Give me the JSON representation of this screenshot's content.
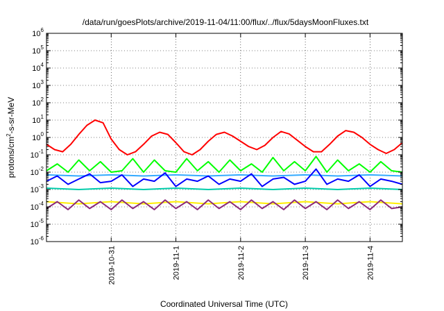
{
  "chart_data": {
    "type": "line",
    "title": "/data/run/goesPlots/archive/2019-11-04/11:00/flux/../flux/5daysMoonFluxes.txt",
    "xlabel": "Coordinated Universal Time (UTC)",
    "ylabel": "protons/cm²-s-sr-MeV",
    "ylabel_parts": {
      "pre": "protons/cm",
      "sup": "2",
      "post": "-s-sr-MeV"
    },
    "yscale": "log",
    "ylim": [
      1e-06,
      1000000.0
    ],
    "xlim": [
      "2019-10-30T00:00",
      "2019-11-04T12:00"
    ],
    "grid": true,
    "y_ticks": [
      {
        "base": "10",
        "exp": "-6"
      },
      {
        "base": "10",
        "exp": "-5"
      },
      {
        "base": "10",
        "exp": "-4"
      },
      {
        "base": "10",
        "exp": "-3"
      },
      {
        "base": "10",
        "exp": "-2"
      },
      {
        "base": "10",
        "exp": "-1"
      },
      {
        "base": "10",
        "exp": "0"
      },
      {
        "base": "10",
        "exp": "1"
      },
      {
        "base": "10",
        "exp": "2"
      },
      {
        "base": "10",
        "exp": "3"
      },
      {
        "base": "10",
        "exp": "4"
      },
      {
        "base": "10",
        "exp": "5"
      },
      {
        "base": "10",
        "exp": "6"
      }
    ],
    "x_ticks": [
      {
        "date": "2019-10-31T00:00",
        "label": "2019-10-31"
      },
      {
        "date": "2019-11-01T00:00",
        "label": "2019-11-1"
      },
      {
        "date": "2019-11-02T00:00",
        "label": "2019-11-2"
      },
      {
        "date": "2019-11-03T00:00",
        "label": "2019-11-3"
      },
      {
        "date": "2019-11-04T00:00",
        "label": "2019-11-4"
      }
    ],
    "series": [
      {
        "color": "#ff0000",
        "x": [
          "2019-10-30T00:00",
          "2019-10-30T03:00",
          "2019-10-30T06:00",
          "2019-10-30T09:00",
          "2019-10-30T12:00",
          "2019-10-30T15:00",
          "2019-10-30T18:00",
          "2019-10-30T21:00",
          "2019-10-31T00:00",
          "2019-10-31T03:00",
          "2019-10-31T06:00",
          "2019-10-31T09:00",
          "2019-10-31T12:00",
          "2019-10-31T15:00",
          "2019-10-31T18:00",
          "2019-10-31T21:00",
          "2019-11-01T00:00",
          "2019-11-01T03:00",
          "2019-11-01T06:00",
          "2019-11-01T09:00",
          "2019-11-01T12:00",
          "2019-11-01T15:00",
          "2019-11-01T18:00",
          "2019-11-01T21:00",
          "2019-11-02T00:00",
          "2019-11-02T03:00",
          "2019-11-02T06:00",
          "2019-11-02T09:00",
          "2019-11-02T12:00",
          "2019-11-02T15:00",
          "2019-11-02T18:00",
          "2019-11-02T21:00",
          "2019-11-03T00:00",
          "2019-11-03T03:00",
          "2019-11-03T06:00",
          "2019-11-03T09:00",
          "2019-11-03T12:00",
          "2019-11-03T15:00",
          "2019-11-03T18:00",
          "2019-11-03T21:00",
          "2019-11-04T00:00",
          "2019-11-04T03:00",
          "2019-11-04T06:00",
          "2019-11-04T09:00",
          "2019-11-04T12:00"
        ],
        "values": [
          0.4,
          0.2,
          0.15,
          0.4,
          1.5,
          5,
          10,
          7,
          0.8,
          0.2,
          0.1,
          0.15,
          0.4,
          1.2,
          2,
          1.5,
          0.5,
          0.15,
          0.1,
          0.2,
          0.6,
          1.5,
          2,
          1.2,
          0.6,
          0.3,
          0.2,
          0.35,
          1,
          2.2,
          1.6,
          0.7,
          0.3,
          0.15,
          0.15,
          0.4,
          1.2,
          2.5,
          2,
          1,
          0.4,
          0.2,
          0.12,
          0.2,
          0.5
        ]
      },
      {
        "color": "#00ff00",
        "x": [
          "2019-10-30T00:00",
          "2019-10-30T04:00",
          "2019-10-30T08:00",
          "2019-10-30T12:00",
          "2019-10-30T16:00",
          "2019-10-30T20:00",
          "2019-10-31T00:00",
          "2019-10-31T04:00",
          "2019-10-31T08:00",
          "2019-10-31T12:00",
          "2019-10-31T16:00",
          "2019-10-31T20:00",
          "2019-11-01T00:00",
          "2019-11-01T04:00",
          "2019-11-01T08:00",
          "2019-11-01T12:00",
          "2019-11-01T16:00",
          "2019-11-01T20:00",
          "2019-11-02T00:00",
          "2019-11-02T04:00",
          "2019-11-02T08:00",
          "2019-11-02T12:00",
          "2019-11-02T16:00",
          "2019-11-02T20:00",
          "2019-11-03T00:00",
          "2019-11-03T04:00",
          "2019-11-03T08:00",
          "2019-11-03T12:00",
          "2019-11-03T16:00",
          "2019-11-03T20:00",
          "2019-11-04T00:00",
          "2019-11-04T04:00",
          "2019-11-04T08:00",
          "2019-11-04T12:00"
        ],
        "values": [
          0.012,
          0.03,
          0.01,
          0.05,
          0.012,
          0.04,
          0.01,
          0.012,
          0.06,
          0.01,
          0.05,
          0.012,
          0.01,
          0.06,
          0.012,
          0.04,
          0.01,
          0.05,
          0.012,
          0.03,
          0.01,
          0.07,
          0.012,
          0.04,
          0.012,
          0.08,
          0.01,
          0.05,
          0.012,
          0.03,
          0.01,
          0.04,
          0.012,
          0.01
        ]
      },
      {
        "color": "#33aaff",
        "x": [
          "2019-10-30T00:00",
          "2019-10-30T12:00",
          "2019-10-31T00:00",
          "2019-10-31T12:00",
          "2019-11-01T00:00",
          "2019-11-01T12:00",
          "2019-11-02T00:00",
          "2019-11-02T12:00",
          "2019-11-03T00:00",
          "2019-11-03T12:00",
          "2019-11-04T00:00",
          "2019-11-04T12:00"
        ],
        "values": [
          0.007,
          0.006,
          0.007,
          0.006,
          0.007,
          0.006,
          0.007,
          0.006,
          0.007,
          0.006,
          0.007,
          0.006
        ]
      },
      {
        "color": "#0000ff",
        "x": [
          "2019-10-30T00:00",
          "2019-10-30T04:00",
          "2019-10-30T08:00",
          "2019-10-30T12:00",
          "2019-10-30T16:00",
          "2019-10-30T20:00",
          "2019-10-31T00:00",
          "2019-10-31T04:00",
          "2019-10-31T08:00",
          "2019-10-31T12:00",
          "2019-10-31T16:00",
          "2019-10-31T20:00",
          "2019-11-01T00:00",
          "2019-11-01T04:00",
          "2019-11-01T08:00",
          "2019-11-01T12:00",
          "2019-11-01T16:00",
          "2019-11-01T20:00",
          "2019-11-02T00:00",
          "2019-11-02T04:00",
          "2019-11-02T08:00",
          "2019-11-02T12:00",
          "2019-11-02T16:00",
          "2019-11-02T20:00",
          "2019-11-03T00:00",
          "2019-11-03T04:00",
          "2019-11-03T08:00",
          "2019-11-03T12:00",
          "2019-11-03T16:00",
          "2019-11-03T20:00",
          "2019-11-04T00:00",
          "2019-11-04T04:00",
          "2019-11-04T08:00",
          "2019-11-04T12:00"
        ],
        "values": [
          0.003,
          0.006,
          0.002,
          0.004,
          0.008,
          0.0025,
          0.003,
          0.007,
          0.0015,
          0.004,
          0.003,
          0.009,
          0.0015,
          0.004,
          0.003,
          0.006,
          0.002,
          0.004,
          0.003,
          0.008,
          0.0015,
          0.004,
          0.005,
          0.002,
          0.003,
          0.015,
          0.002,
          0.004,
          0.003,
          0.007,
          0.0015,
          0.004,
          0.003,
          0.002
        ]
      },
      {
        "color": "#00ccaa",
        "x": [
          "2019-10-30T00:00",
          "2019-10-30T12:00",
          "2019-10-31T00:00",
          "2019-10-31T12:00",
          "2019-11-01T00:00",
          "2019-11-01T12:00",
          "2019-11-02T00:00",
          "2019-11-02T12:00",
          "2019-11-03T00:00",
          "2019-11-03T12:00",
          "2019-11-04T00:00",
          "2019-11-04T12:00"
        ],
        "values": [
          0.0012,
          0.001,
          0.0012,
          0.001,
          0.0012,
          0.001,
          0.0012,
          0.001,
          0.0012,
          0.001,
          0.0012,
          0.001
        ]
      },
      {
        "color": "#ffee00",
        "x": [
          "2019-10-30T00:00",
          "2019-10-30T12:00",
          "2019-10-31T00:00",
          "2019-10-31T12:00",
          "2019-11-01T00:00",
          "2019-11-01T12:00",
          "2019-11-02T00:00",
          "2019-11-02T12:00",
          "2019-11-03T00:00",
          "2019-11-03T12:00",
          "2019-11-04T00:00",
          "2019-11-04T12:00"
        ],
        "values": [
          0.0002,
          0.00015,
          0.0002,
          0.00015,
          0.0002,
          0.00015,
          0.0002,
          0.00015,
          0.0002,
          0.00015,
          0.0002,
          0.00015
        ]
      },
      {
        "color": "#8b2a7a",
        "x": [
          "2019-10-30T00:00",
          "2019-10-30T04:00",
          "2019-10-30T08:00",
          "2019-10-30T12:00",
          "2019-10-30T16:00",
          "2019-10-30T20:00",
          "2019-10-31T00:00",
          "2019-10-31T04:00",
          "2019-10-31T08:00",
          "2019-10-31T12:00",
          "2019-10-31T16:00",
          "2019-10-31T20:00",
          "2019-11-01T00:00",
          "2019-11-01T04:00",
          "2019-11-01T08:00",
          "2019-11-01T12:00",
          "2019-11-01T16:00",
          "2019-11-01T20:00",
          "2019-11-02T00:00",
          "2019-11-02T04:00",
          "2019-11-02T08:00",
          "2019-11-02T12:00",
          "2019-11-02T16:00",
          "2019-11-02T20:00",
          "2019-11-03T00:00",
          "2019-11-03T04:00",
          "2019-11-03T08:00",
          "2019-11-03T12:00",
          "2019-11-03T16:00",
          "2019-11-03T20:00",
          "2019-11-04T00:00",
          "2019-11-04T04:00",
          "2019-11-04T08:00",
          "2019-11-04T12:00"
        ],
        "values": [
          8e-05,
          0.0002,
          7e-05,
          0.00025,
          8e-05,
          0.0002,
          7e-05,
          0.00025,
          8e-05,
          0.0002,
          7e-05,
          0.00025,
          8e-05,
          0.0002,
          7e-05,
          0.00025,
          8e-05,
          0.0002,
          7e-05,
          0.00025,
          8e-05,
          0.0002,
          7e-05,
          0.00025,
          8e-05,
          0.0002,
          7e-05,
          0.00025,
          8e-05,
          0.0002,
          7e-05,
          0.00025,
          8e-05,
          0.0001
        ]
      }
    ]
  }
}
